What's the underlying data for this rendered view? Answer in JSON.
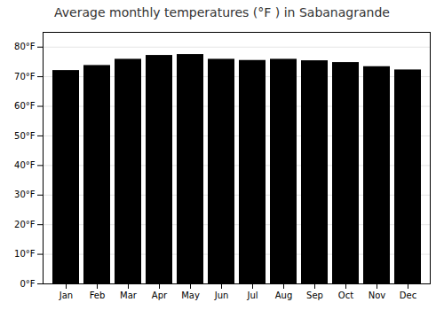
{
  "chart_data": {
    "type": "bar",
    "title": "Average monthly temperatures (°F ) in Sabanagrande",
    "categories": [
      "Jan",
      "Feb",
      "Mar",
      "Apr",
      "May",
      "Jun",
      "Jul",
      "Aug",
      "Sep",
      "Oct",
      "Nov",
      "Dec"
    ],
    "values": [
      72.1,
      73.8,
      75.9,
      77.2,
      77.5,
      75.9,
      75.5,
      75.9,
      75.4,
      74.8,
      73.4,
      72.3
    ],
    "ylim": [
      0,
      85
    ],
    "yticks": [
      {
        "value": 0,
        "label": "0°F"
      },
      {
        "value": 10,
        "label": "10°F"
      },
      {
        "value": 20,
        "label": "20°F"
      },
      {
        "value": 30,
        "label": "30°F"
      },
      {
        "value": 40,
        "label": "40°F"
      },
      {
        "value": 50,
        "label": "50°F"
      },
      {
        "value": 60,
        "label": "60°F"
      },
      {
        "value": 70,
        "label": "70°F"
      },
      {
        "value": 80,
        "label": "80°F"
      }
    ],
    "grid": true
  }
}
